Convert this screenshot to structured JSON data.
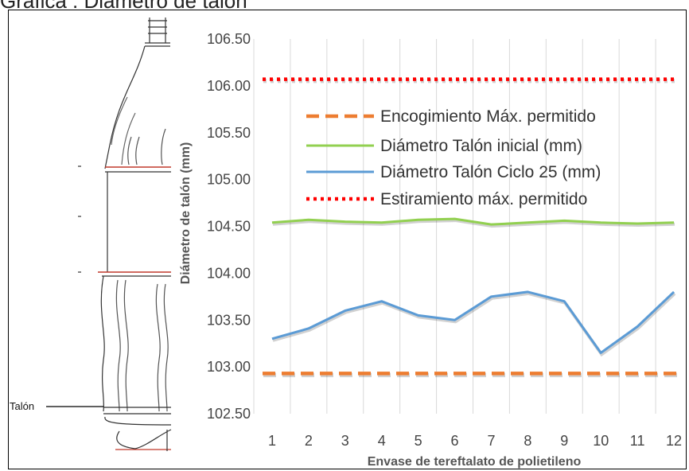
{
  "figure": {
    "top_title": "Gráfica . Diámetro de talón",
    "bottle_label": "Talón"
  },
  "chart_data": {
    "type": "line",
    "x": [
      1,
      2,
      3,
      4,
      5,
      6,
      7,
      8,
      9,
      10,
      11,
      12
    ],
    "xlabel": "Envase de tereftalato de polietileno",
    "ylabel": "Diámetro de talón (mm)",
    "ylim": [
      102.5,
      106.5
    ],
    "yticks": [
      "102.50",
      "103.00",
      "103.50",
      "104.00",
      "104.50",
      "105.00",
      "105.50",
      "106.00",
      "106.50"
    ],
    "grid": "vertical",
    "legend": "top-right",
    "series": [
      {
        "name": "Encogimiento Máx. permitido",
        "style": "dashed",
        "color": "#ED7D31",
        "values": [
          102.93,
          102.93,
          102.93,
          102.93,
          102.93,
          102.93,
          102.93,
          102.93,
          102.93,
          102.93,
          102.93,
          102.93
        ]
      },
      {
        "name": "Diámetro Talón inicial (mm)",
        "style": "solid",
        "color": "#92D050",
        "values": [
          104.54,
          104.57,
          104.55,
          104.54,
          104.57,
          104.58,
          104.52,
          104.54,
          104.56,
          104.54,
          104.53,
          104.54
        ]
      },
      {
        "name": "Diámetro Talón Ciclo 25 (mm)",
        "style": "solid",
        "color": "#5B9BD5",
        "values": [
          103.3,
          103.41,
          103.6,
          103.7,
          103.55,
          103.5,
          103.75,
          103.8,
          103.7,
          103.15,
          103.43,
          103.8
        ]
      },
      {
        "name": "Estiramiento máx. permitido",
        "style": "dotted",
        "color": "#FF0000",
        "values": [
          106.07,
          106.07,
          106.07,
          106.07,
          106.07,
          106.07,
          106.07,
          106.07,
          106.07,
          106.07,
          106.07,
          106.07
        ]
      }
    ]
  }
}
